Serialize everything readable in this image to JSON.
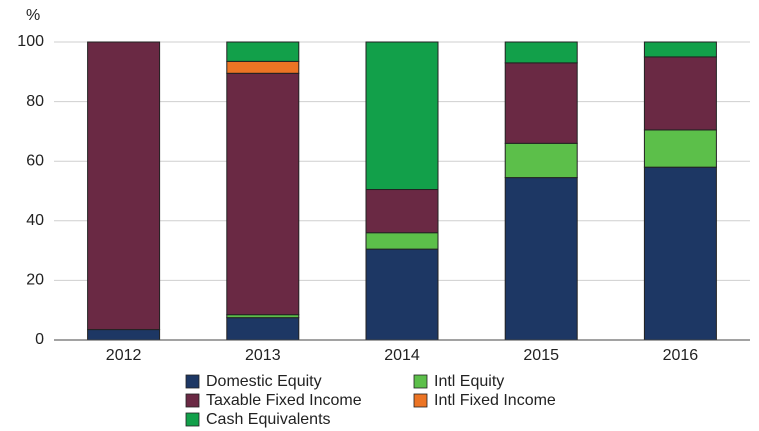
{
  "chart_data": {
    "type": "stacked_bar",
    "y_label": "%",
    "categories": [
      "2012",
      "2013",
      "2014",
      "2015",
      "2016"
    ],
    "series": [
      {
        "name": "Domestic Equity",
        "color": "#1d3764",
        "values": [
          3.5,
          7.5,
          30.5,
          54.5,
          58
        ]
      },
      {
        "name": "Intl Equity",
        "color": "#5cbf4a",
        "values": [
          0,
          1,
          5.5,
          11.5,
          12.5
        ]
      },
      {
        "name": "Taxable Fixed Income",
        "color": "#6a2944",
        "values": [
          96.5,
          81,
          14.5,
          27,
          24.5
        ]
      },
      {
        "name": "Intl Fixed Income",
        "color": "#ec7424",
        "values": [
          0,
          4,
          0,
          0,
          0
        ]
      },
      {
        "name": "Cash Equivalents",
        "color": "#12a04a",
        "values": [
          0,
          6.5,
          49.5,
          7,
          5
        ]
      }
    ],
    "ylim": [
      0,
      100
    ],
    "yticks": [
      0,
      20,
      40,
      60,
      80,
      100
    ],
    "grid": true
  }
}
